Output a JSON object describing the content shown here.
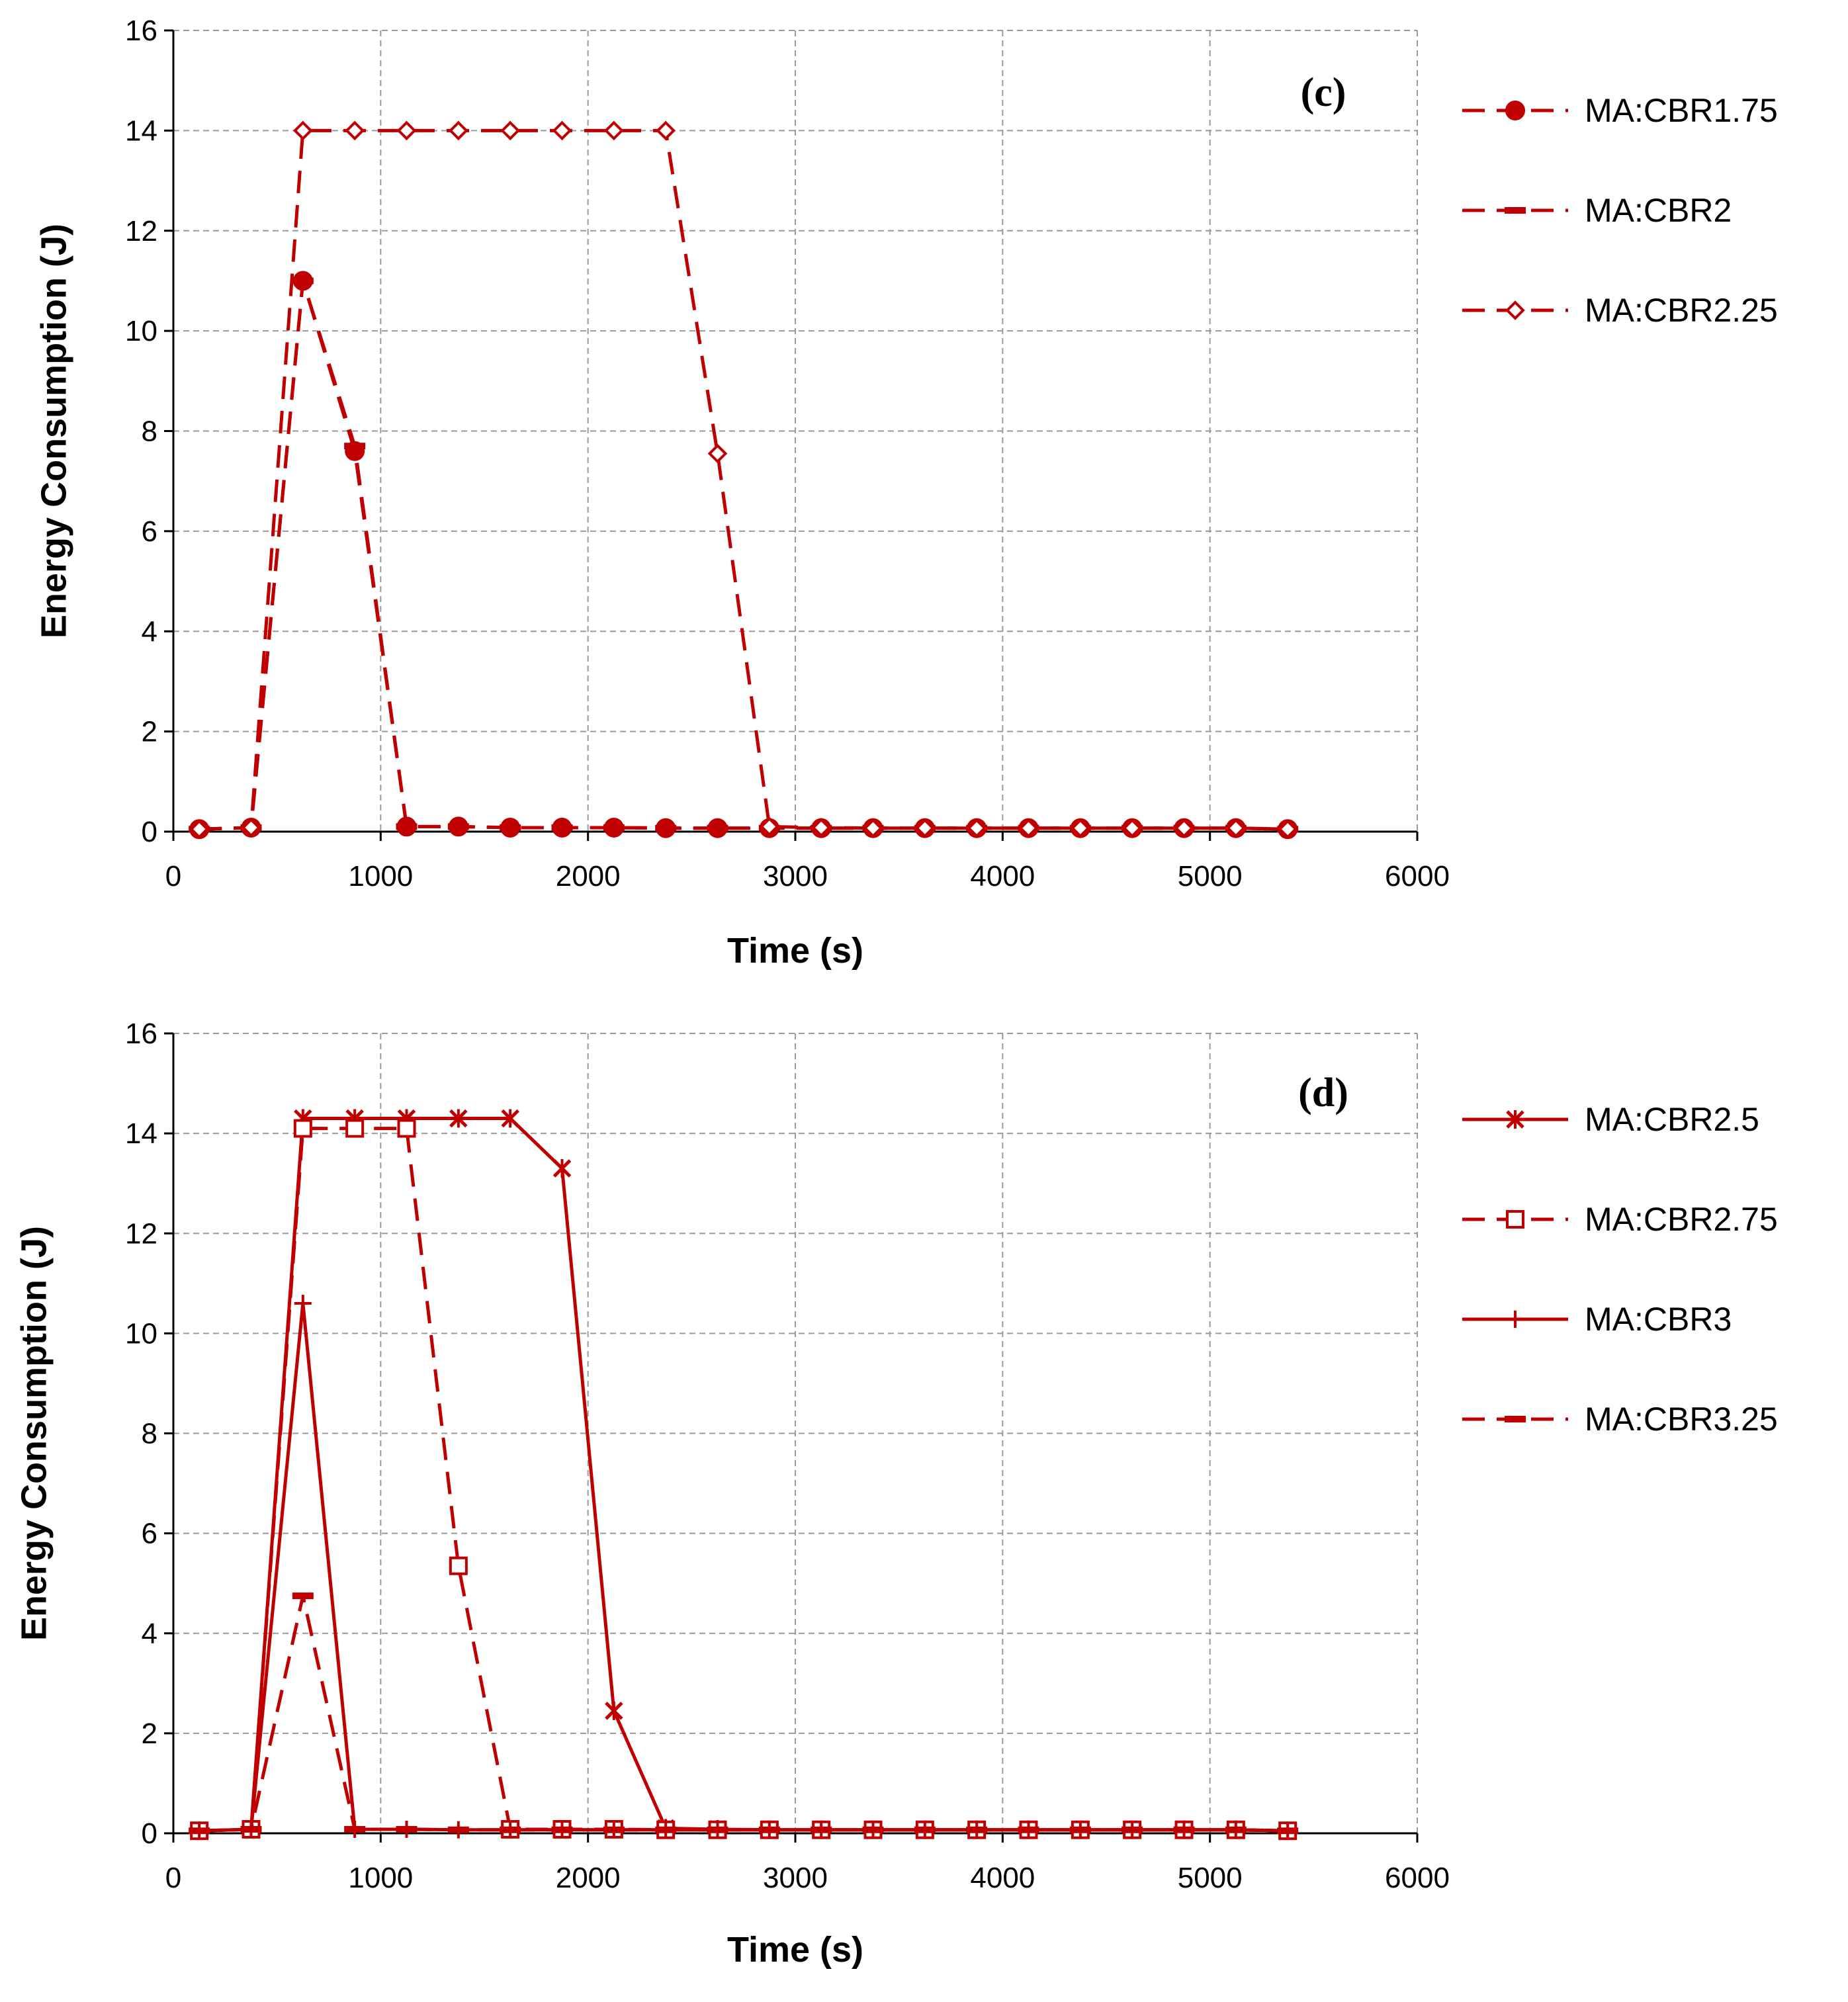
{
  "colors": {
    "series": "#C00000",
    "grid": "#9a9a9a",
    "axis": "#000000"
  },
  "chart_data": [
    {
      "type": "line",
      "panel_label": "(c)",
      "title": "",
      "xlabel": "Time (s)",
      "ylabel": "Energy Consumption (J)",
      "xlim": [
        0,
        6000
      ],
      "ylim": [
        0,
        16
      ],
      "xticks": [
        "0",
        "1000",
        "2000",
        "3000",
        "4000",
        "5000",
        "6000"
      ],
      "yticks": [
        "0",
        "2",
        "4",
        "6",
        "8",
        "10",
        "12",
        "14",
        "16"
      ],
      "grid": true,
      "legend_position": "right",
      "x": [
        125,
        375,
        625,
        875,
        1125,
        1375,
        1625,
        1875,
        2125,
        2375,
        2625,
        2875,
        3125,
        3375,
        3625,
        3875,
        4125,
        4375,
        4625,
        4875,
        5125,
        5375
      ],
      "series": [
        {
          "name": "MA:CBR1.75",
          "dash": "long",
          "marker": "circle",
          "values": [
            0.05,
            0.08,
            11.0,
            7.6,
            0.1,
            0.1,
            0.08,
            0.08,
            0.08,
            0.07,
            0.07,
            0.07,
            0.07,
            0.07,
            0.07,
            0.07,
            0.07,
            0.07,
            0.07,
            0.07,
            0.07,
            0.05
          ]
        },
        {
          "name": "MA:CBR2",
          "dash": "long",
          "marker": "dash",
          "values": [
            0.05,
            0.08,
            11.0,
            7.7,
            0.1,
            0.1,
            0.08,
            0.08,
            0.08,
            0.07,
            0.07,
            0.07,
            0.07,
            0.07,
            0.07,
            0.07,
            0.07,
            0.07,
            0.07,
            0.07,
            0.07,
            0.05
          ]
        },
        {
          "name": "MA:CBR2.25",
          "dash": "long",
          "marker": "diamond",
          "values": [
            0.05,
            0.08,
            14.0,
            14.0,
            14.0,
            14.0,
            14.0,
            14.0,
            14.0,
            14.0,
            7.55,
            0.1,
            0.08,
            0.07,
            0.07,
            0.07,
            0.07,
            0.07,
            0.07,
            0.07,
            0.07,
            0.05
          ]
        }
      ]
    },
    {
      "type": "line",
      "panel_label": "(d)",
      "title": "",
      "xlabel": "Time (s)",
      "ylabel": "Energy Consumption (J)",
      "xlim": [
        0,
        6000
      ],
      "ylim": [
        0,
        16
      ],
      "xticks": [
        "0",
        "1000",
        "2000",
        "3000",
        "4000",
        "5000",
        "6000"
      ],
      "yticks": [
        "0",
        "2",
        "4",
        "6",
        "8",
        "10",
        "12",
        "14",
        "16"
      ],
      "grid": true,
      "legend_position": "right",
      "x": [
        125,
        375,
        625,
        875,
        1125,
        1375,
        1625,
        1875,
        2125,
        2375,
        2625,
        2875,
        3125,
        3375,
        3625,
        3875,
        4125,
        4375,
        4625,
        4875,
        5125,
        5375
      ],
      "series": [
        {
          "name": "MA:CBR2.5",
          "dash": "solid",
          "marker": "asterisk",
          "values": [
            0.05,
            0.08,
            14.3,
            14.3,
            14.3,
            14.3,
            14.3,
            13.3,
            2.45,
            0.1,
            0.08,
            0.07,
            0.07,
            0.07,
            0.07,
            0.07,
            0.07,
            0.07,
            0.07,
            0.07,
            0.07,
            0.05
          ]
        },
        {
          "name": "MA:CBR2.75",
          "dash": "long",
          "marker": "square",
          "values": [
            0.05,
            0.08,
            14.1,
            14.1,
            14.1,
            5.35,
            0.08,
            0.08,
            0.08,
            0.07,
            0.07,
            0.07,
            0.07,
            0.07,
            0.07,
            0.07,
            0.07,
            0.07,
            0.07,
            0.07,
            0.07,
            0.05
          ]
        },
        {
          "name": "MA:CBR3",
          "dash": "solid",
          "marker": "plus",
          "values": [
            0.05,
            0.08,
            10.6,
            0.08,
            0.08,
            0.07,
            0.07,
            0.07,
            0.07,
            0.07,
            0.07,
            0.07,
            0.07,
            0.07,
            0.07,
            0.07,
            0.07,
            0.07,
            0.07,
            0.07,
            0.07,
            0.05
          ]
        },
        {
          "name": "MA:CBR3.25",
          "dash": "long",
          "marker": "dash",
          "values": [
            0.05,
            0.08,
            4.75,
            0.08,
            0.08,
            0.07,
            0.07,
            0.07,
            0.07,
            0.07,
            0.07,
            0.07,
            0.07,
            0.07,
            0.07,
            0.07,
            0.07,
            0.07,
            0.07,
            0.07,
            0.07,
            0.05
          ]
        }
      ]
    }
  ]
}
